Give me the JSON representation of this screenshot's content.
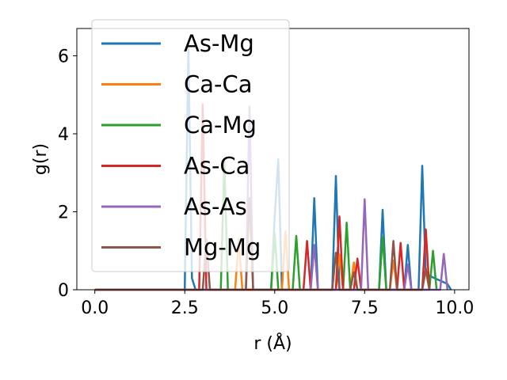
{
  "chart_data": {
    "type": "line",
    "xlabel": "r (Å)",
    "ylabel": "g(r)",
    "xlim": [
      -0.5,
      10.4
    ],
    "ylim": [
      0,
      6.7
    ],
    "xticks": [
      0.0,
      2.5,
      5.0,
      7.5,
      10.0
    ],
    "xtick_labels": [
      "0.0",
      "2.5",
      "5.0",
      "7.5",
      "10.0"
    ],
    "yticks": [
      0,
      2,
      4,
      6
    ],
    "ytick_labels": [
      "0",
      "2",
      "4",
      "6"
    ],
    "grid": false,
    "legend_position": "upper left",
    "series": [
      {
        "name": "As-Mg",
        "color": "#1f77b4",
        "x": [
          0.0,
          2.5,
          2.6,
          2.7,
          2.8,
          4.9,
          5.0,
          5.1,
          5.2,
          6.0,
          6.1,
          6.2,
          6.6,
          6.7,
          6.8,
          7.9,
          8.0,
          8.1,
          8.6,
          8.7,
          8.8,
          9.0,
          9.1,
          9.2,
          9.8,
          9.9
        ],
        "y": [
          0,
          0,
          6.2,
          0.3,
          0,
          0,
          1.9,
          3.35,
          0,
          0,
          2.35,
          0,
          0,
          2.92,
          0,
          0,
          2.05,
          0,
          0,
          1.15,
          0,
          0,
          3.18,
          0.4,
          0.15,
          0
        ]
      },
      {
        "name": "Ca-Ca",
        "color": "#ff7f0e",
        "x": [
          0.0,
          3.9,
          4.0,
          4.1,
          5.2,
          5.3,
          5.4,
          6.7,
          6.8,
          6.9,
          7.1,
          7.2,
          7.3,
          8.2,
          8.3,
          8.4,
          9.1,
          9.2,
          9.3
        ],
        "y": [
          0,
          0,
          1.3,
          0,
          0,
          1.5,
          0,
          0,
          0.9,
          0,
          0,
          0.7,
          0,
          0,
          0.75,
          0,
          0,
          0.5,
          0
        ]
      },
      {
        "name": "Ca-Mg",
        "color": "#2ca02c",
        "x": [
          0.0,
          3.5,
          3.6,
          3.7,
          4.9,
          5.0,
          5.1,
          5.5,
          5.6,
          5.7,
          6.9,
          7.0,
          7.1,
          7.9,
          8.0,
          8.1,
          9.3,
          9.4,
          9.5
        ],
        "y": [
          0,
          0,
          3.3,
          0,
          0,
          1.45,
          0,
          0,
          1.38,
          0,
          0,
          1.72,
          0,
          0,
          1.35,
          0,
          0,
          1.0,
          0
        ]
      },
      {
        "name": "As-Ca",
        "color": "#d62728",
        "x": [
          0.0,
          2.9,
          3.0,
          3.1,
          5.8,
          5.9,
          6.0,
          6.7,
          6.8,
          6.9,
          7.2,
          7.3,
          7.4,
          8.4,
          8.5,
          8.6,
          9.1,
          9.2,
          9.3
        ],
        "y": [
          0,
          0,
          4.75,
          0,
          0,
          1.25,
          0,
          0,
          1.88,
          0,
          0,
          0.8,
          0,
          0,
          1.2,
          0,
          0,
          1.55,
          0
        ]
      },
      {
        "name": "As-As",
        "color": "#9467bd",
        "x": [
          0.0,
          4.2,
          4.3,
          4.4,
          6.0,
          6.1,
          6.2,
          7.4,
          7.5,
          7.6,
          8.6,
          8.7,
          8.8,
          9.6,
          9.7,
          9.8
        ],
        "y": [
          0,
          0,
          4.7,
          0,
          0,
          1.15,
          0,
          0,
          2.32,
          0,
          0,
          0.65,
          0,
          0,
          0.92,
          0
        ]
      },
      {
        "name": "Mg-Mg",
        "color": "#8c564b",
        "x": [
          0.0,
          3.0,
          3.1,
          3.2,
          4.2,
          4.3,
          4.4,
          6.6,
          6.7,
          6.8,
          7.1,
          7.2,
          7.3,
          8.2,
          8.3,
          8.4,
          9.1,
          9.2,
          9.3
        ],
        "y": [
          0,
          0,
          1.3,
          0,
          0,
          2.35,
          0,
          0,
          0.95,
          0,
          0,
          0.45,
          0,
          0,
          1.25,
          0,
          0,
          0.55,
          0
        ]
      }
    ]
  }
}
